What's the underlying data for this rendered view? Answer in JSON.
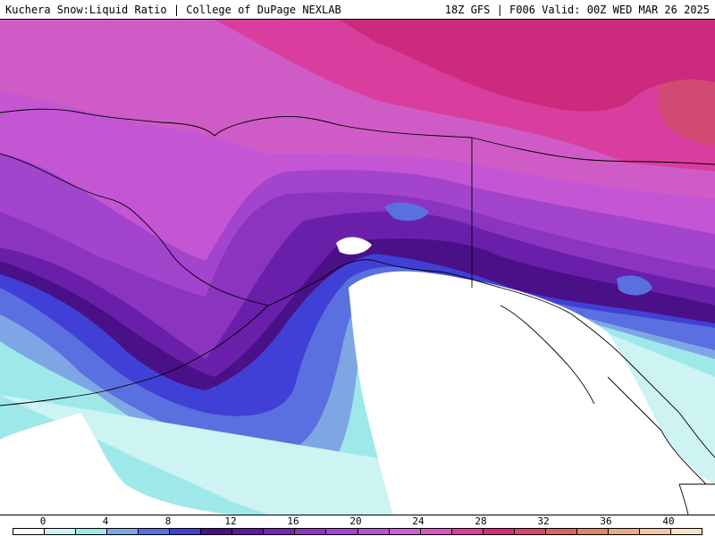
{
  "header": {
    "left_text": "Kuchera Snow:Liquid Ratio | College of DuPage NEXLAB",
    "right_text": "18Z GFS | F006 Valid: 00Z WED MAR 26 2025"
  },
  "legend": {
    "tick_labels": [
      "0",
      "4",
      "8",
      "12",
      "16",
      "20",
      "24",
      "28",
      "32",
      "36",
      "40"
    ],
    "colors": [
      "#ffffff",
      "#cdf3f3",
      "#9ee8ea",
      "#7fa6e4",
      "#5a6fe0",
      "#4040d6",
      "#4a1088",
      "#5e1a9c",
      "#7426b0",
      "#8a34c0",
      "#a244cc",
      "#b853d4",
      "#cc5fd6",
      "#d858c4",
      "#dd3e9e",
      "#d92a7c",
      "#d8466c",
      "#d8645e",
      "#e08666",
      "#ebaa86",
      "#f3c6a6",
      "#fae0c6"
    ]
  },
  "map": {
    "field_colors": {
      "white": "#ffffff",
      "pale_cyan": "#cdf3f3",
      "cyan": "#9ee8ea",
      "light_blue": "#7fa6e4",
      "blue": "#5a6fe0",
      "deep_blue": "#4040d6",
      "dark_purple": "#4a1088",
      "purple": "#6a1faa",
      "med_purple": "#8a34c0",
      "violet": "#a244cc",
      "orchid": "#c456d4",
      "pink_violet": "#cf5cc6",
      "magenta": "#d93e9e",
      "dark_magenta": "#cc2a7c",
      "rose": "#d04a72"
    },
    "outline_color": "#000000"
  }
}
